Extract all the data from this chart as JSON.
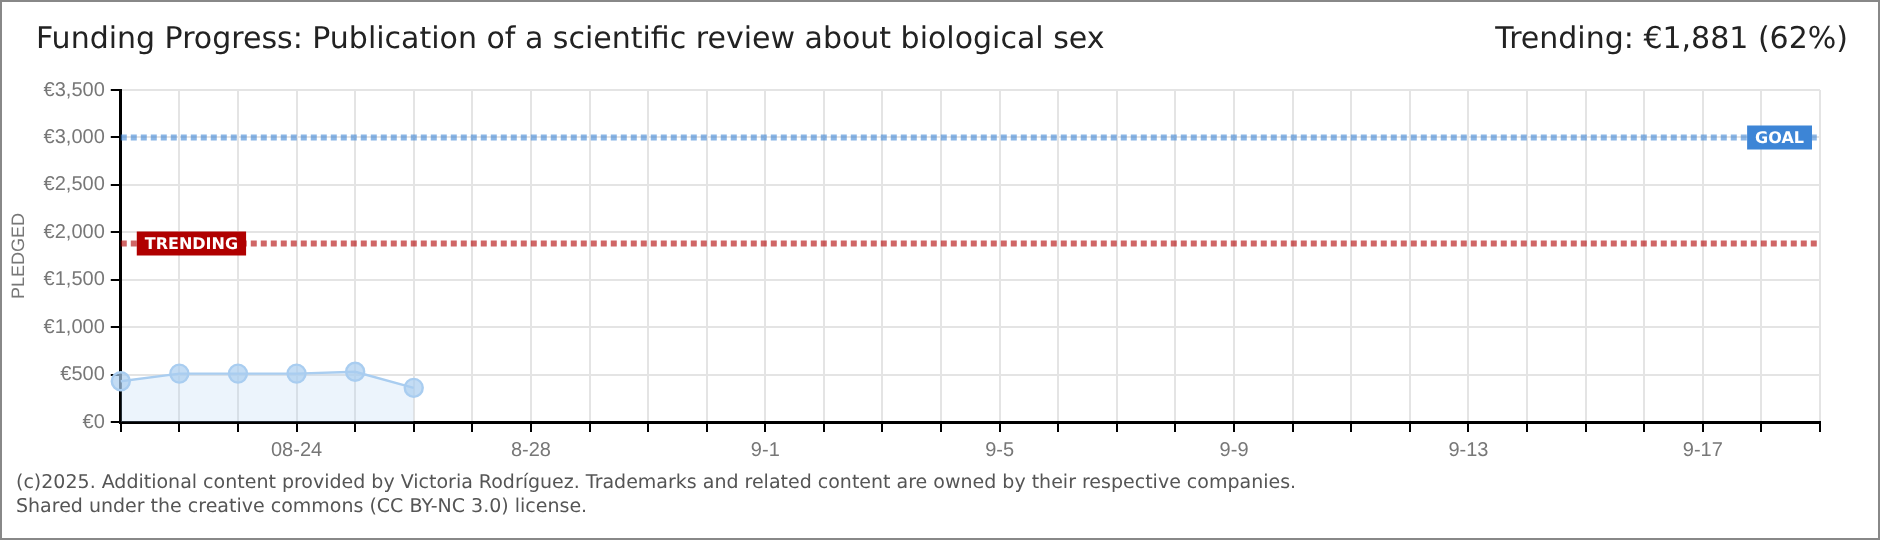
{
  "chart_data": {
    "type": "area",
    "title": "Funding Progress: Publication of a scientific review about biological sex",
    "subtitle": "Trending: €1,881 (62%)",
    "ylabel": "PLEDGED",
    "categories": [
      null,
      null,
      null,
      "08-24",
      null,
      null,
      null,
      "8-28",
      null,
      null,
      null,
      "9-1",
      null,
      null,
      null,
      "9-5",
      null,
      null,
      null,
      "9-9",
      null,
      null,
      null,
      "9-13",
      null,
      null,
      null,
      "9-17",
      null,
      null
    ],
    "series": [
      {
        "color": "#a9cdf0",
        "values": [
          430,
          510,
          510,
          510,
          530,
          360,
          null,
          null,
          null,
          null,
          null,
          null,
          null,
          null,
          null,
          null,
          null,
          null,
          null,
          null,
          null,
          null,
          null,
          null,
          null,
          null,
          null,
          null,
          null,
          null
        ]
      }
    ],
    "ylim": [
      0,
      3500
    ],
    "yticks": [
      {
        "value": 0,
        "label": "€0"
      },
      {
        "value": 500,
        "label": "€500"
      },
      {
        "value": 1000,
        "label": "€1,000"
      },
      {
        "value": 1500,
        "label": "€1,500"
      },
      {
        "value": 2000,
        "label": "€2,000"
      },
      {
        "value": 2500,
        "label": "€2,500"
      },
      {
        "value": 3000,
        "label": "€3,000"
      },
      {
        "value": 3500,
        "label": "€3,500"
      }
    ],
    "ref_lines": [
      {
        "axis": "y",
        "value": 3000,
        "label": "GOAL",
        "color": "#3d85d6",
        "line_style": "dotted"
      },
      {
        "axis": "y",
        "value": 1881,
        "label": "TRENDING",
        "color": "#b00000",
        "line_style": "dotted"
      }
    ],
    "grid": true,
    "legend": false,
    "marker": "circle",
    "annotations": [
      "(c)2025. Additional content provided by Victoria Rodríguez. Trademarks and related content are owned by their respective companies.",
      "Shared under the creative commons (CC BY-NC 3.0) license."
    ]
  }
}
